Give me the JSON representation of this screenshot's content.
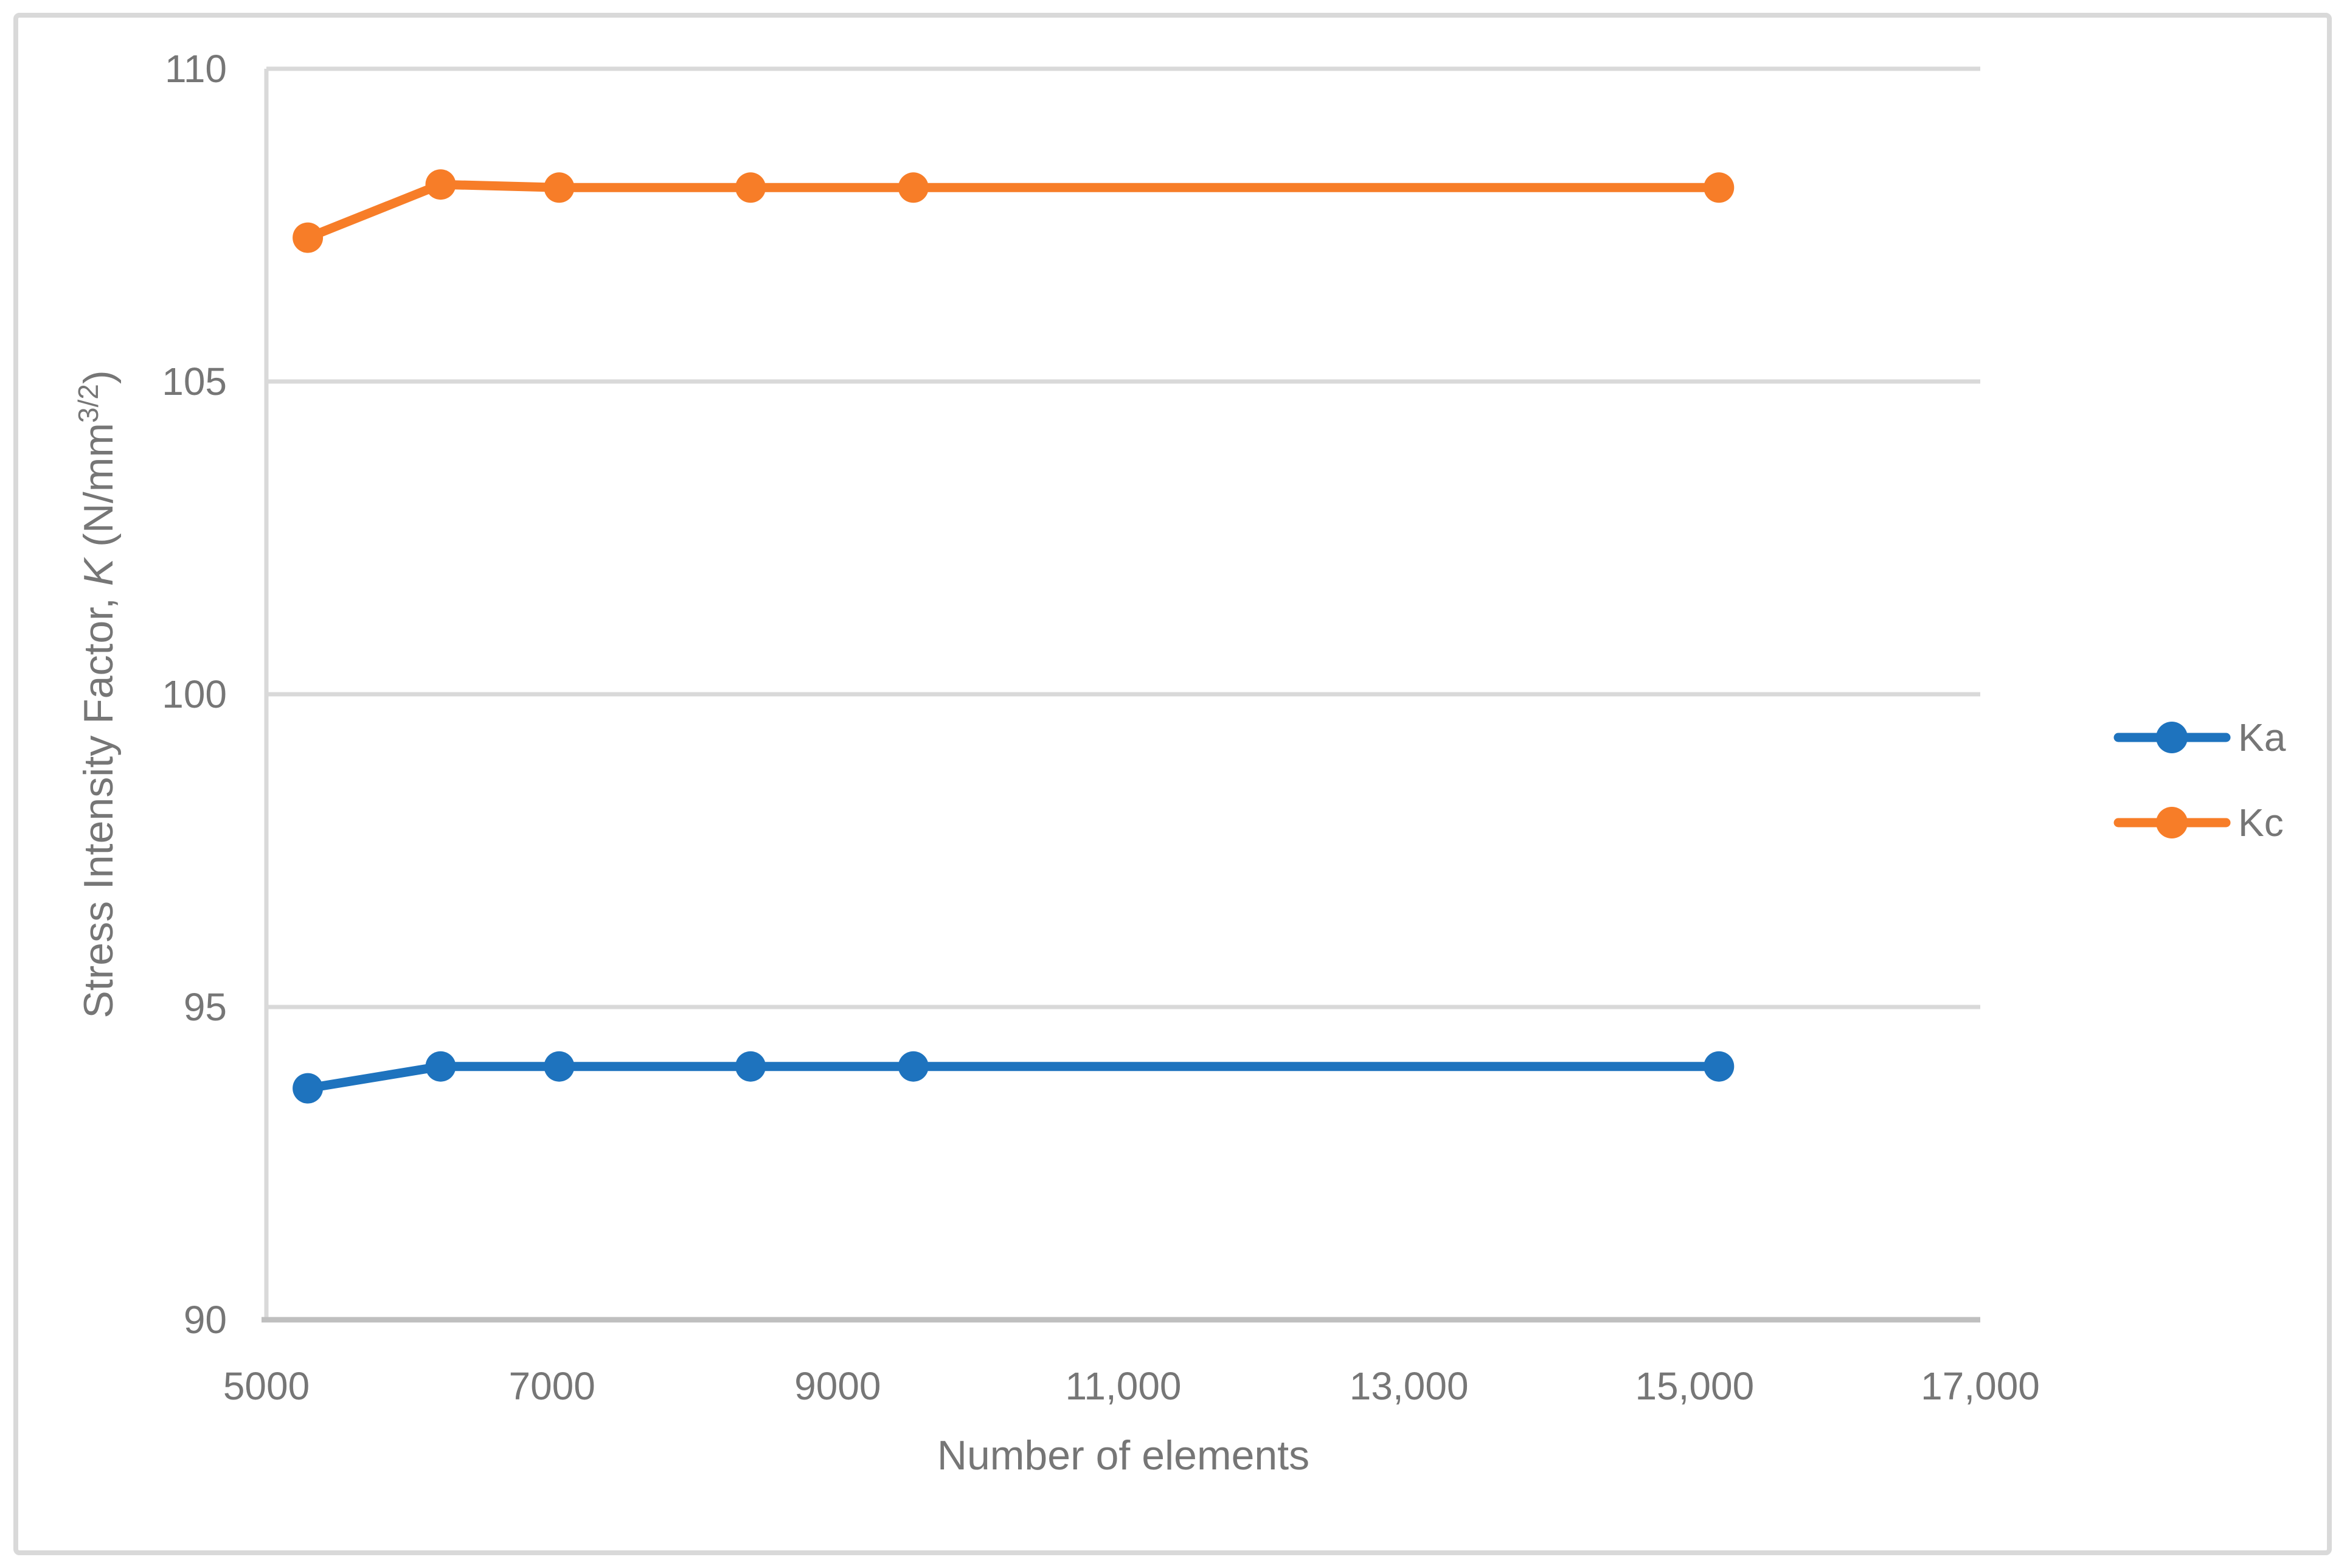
{
  "page": {
    "background": "#FFFFFF",
    "figure_border_color": "#D9D9D9"
  },
  "chart_data": {
    "type": "line",
    "title": "",
    "xlabel": "Number of elements",
    "ylabel": "Stress Intensity Factor, K (N/mm3/2)",
    "ylabel_parts": {
      "prefix": "Stress Intensity Factor, ",
      "symbol": "K",
      "mid": " (N/mm",
      "superscript": "3/2",
      "suffix": ")"
    },
    "x": [
      5290,
      6220,
      7050,
      8390,
      9530,
      15170
    ],
    "series": [
      {
        "name": "Ka",
        "color": "#1E73BE",
        "values": [
          93.7,
          94.05,
          94.05,
          94.05,
          94.05,
          94.05
        ]
      },
      {
        "name": "Kc",
        "color": "#F77D28",
        "values": [
          107.3,
          108.15,
          108.1,
          108.1,
          108.1,
          108.1
        ]
      }
    ],
    "xlim": [
      5000,
      17000
    ],
    "ylim": [
      90,
      110
    ],
    "x_tick_values": [
      5000,
      7000,
      9000,
      11000,
      13000,
      15000,
      17000
    ],
    "x_tick_labels": [
      "5000",
      "7000",
      "9000",
      "11,000",
      "13,000",
      "15,000",
      "17,000"
    ],
    "y_tick_values": [
      90,
      95,
      100,
      105,
      110
    ],
    "y_tick_labels": [
      "90",
      "95",
      "100",
      "105",
      "110"
    ],
    "grid": true,
    "legend_position": "right",
    "legend": [
      {
        "label": "Ka"
      },
      {
        "label": "Kc"
      }
    ],
    "style": {
      "grid_color": "#D9D9D9",
      "y_axis_line_color": "#D9D9D9",
      "x_axis_line_color": "#BFBFBF",
      "text_color": "#767676",
      "line_width": 15,
      "marker_radius": 25
    }
  }
}
